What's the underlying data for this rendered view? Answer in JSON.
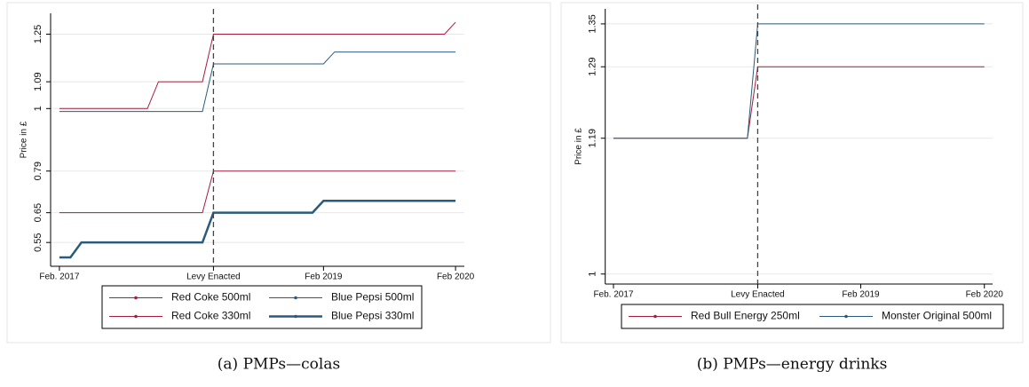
{
  "chart_data": [
    {
      "type": "line",
      "caption": "(a) PMPs—colas",
      "y_label": "Price in £",
      "x": [
        0,
        1,
        2,
        3,
        4,
        5,
        6,
        7,
        8,
        9,
        10,
        11,
        12,
        13,
        14,
        15,
        16,
        17,
        18,
        19,
        20,
        21,
        22,
        23,
        24,
        25,
        26,
        27,
        28,
        29,
        30,
        31,
        32,
        33,
        34,
        35,
        36
      ],
      "xlim": [
        -0.8,
        36.8
      ],
      "xticks": [
        {
          "value": 0,
          "label": "Feb. 2017"
        },
        {
          "value": 14,
          "label": "Levy Enacted"
        },
        {
          "value": 24,
          "label": "Feb 2019"
        },
        {
          "value": 36,
          "label": "Feb 2020"
        }
      ],
      "vline": 14,
      "ylim": [
        0.47,
        1.32
      ],
      "yticks": [
        0.55,
        0.65,
        0.79,
        1,
        1.09,
        1.25
      ],
      "grid": true,
      "series": [
        {
          "name": "Red Coke 500ml",
          "color": "#a51c3c",
          "width": 1,
          "values": [
            1,
            1,
            1,
            1,
            1,
            1,
            1,
            1,
            1,
            1.09,
            1.09,
            1.09,
            1.09,
            1.09,
            1.25,
            1.25,
            1.25,
            1.25,
            1.25,
            1.25,
            1.25,
            1.25,
            1.25,
            1.25,
            1.25,
            1.25,
            1.25,
            1.25,
            1.25,
            1.25,
            1.25,
            1.25,
            1.25,
            1.25,
            1.25,
            1.25,
            1.29
          ]
        },
        {
          "name": "Blue Pepsi 500ml",
          "color": "#2b5b7b",
          "width": 1,
          "values": [
            0.99,
            0.99,
            0.99,
            0.99,
            0.99,
            0.99,
            0.99,
            0.99,
            0.99,
            0.99,
            0.99,
            0.99,
            0.99,
            0.99,
            1.15,
            1.15,
            1.15,
            1.15,
            1.15,
            1.15,
            1.15,
            1.15,
            1.15,
            1.15,
            1.15,
            1.19,
            1.19,
            1.19,
            1.19,
            1.19,
            1.19,
            1.19,
            1.19,
            1.19,
            1.19,
            1.19,
            1.19
          ]
        },
        {
          "name": "Red Coke 330ml",
          "color": "#a51c3c",
          "width": 1,
          "values": [
            0.65,
            0.65,
            0.65,
            0.65,
            0.65,
            0.65,
            0.65,
            0.65,
            0.65,
            0.65,
            0.65,
            0.65,
            0.65,
            0.65,
            0.79,
            0.79,
            0.79,
            0.79,
            0.79,
            0.79,
            0.79,
            0.79,
            0.79,
            0.79,
            0.79,
            0.79,
            0.79,
            0.79,
            0.79,
            0.79,
            0.79,
            0.79,
            0.79,
            0.79,
            0.79,
            0.79,
            0.79
          ]
        },
        {
          "name": "Blue Pepsi 330ml",
          "color": "#2b5b7b",
          "width": 2.5,
          "values": [
            0.5,
            0.5,
            0.55,
            0.55,
            0.55,
            0.55,
            0.55,
            0.55,
            0.55,
            0.55,
            0.55,
            0.55,
            0.55,
            0.55,
            0.65,
            0.65,
            0.65,
            0.65,
            0.65,
            0.65,
            0.65,
            0.65,
            0.65,
            0.65,
            0.69,
            0.69,
            0.69,
            0.69,
            0.69,
            0.69,
            0.69,
            0.69,
            0.69,
            0.69,
            0.69,
            0.69,
            0.69
          ]
        }
      ]
    },
    {
      "type": "line",
      "caption": "(b) PMPs—energy drinks",
      "y_label": "Price in £",
      "x": [
        0,
        1,
        2,
        3,
        4,
        5,
        6,
        7,
        8,
        9,
        10,
        11,
        12,
        13,
        14,
        15,
        16,
        17,
        18,
        19,
        20,
        21,
        22,
        23,
        24,
        25,
        26,
        27,
        28,
        29,
        30,
        31,
        32,
        33,
        34,
        35,
        36
      ],
      "xlim": [
        -0.8,
        36.8
      ],
      "xticks": [
        {
          "value": 0,
          "label": "Feb. 2017"
        },
        {
          "value": 14,
          "label": "Levy Enacted"
        },
        {
          "value": 24,
          "label": "Feb 2019"
        },
        {
          "value": 36,
          "label": "Feb 2020"
        }
      ],
      "vline": 14,
      "ylim": [
        0.986,
        1.371
      ],
      "yticks": [
        1,
        1.19,
        1.29,
        1.35
      ],
      "grid": true,
      "series": [
        {
          "name": "Red Bull Energy 250ml",
          "color": "#a51c3c",
          "width": 1,
          "values": [
            1.19,
            1.19,
            1.19,
            1.19,
            1.19,
            1.19,
            1.19,
            1.19,
            1.19,
            1.19,
            1.19,
            1.19,
            1.19,
            1.19,
            1.29,
            1.29,
            1.29,
            1.29,
            1.29,
            1.29,
            1.29,
            1.29,
            1.29,
            1.29,
            1.29,
            1.29,
            1.29,
            1.29,
            1.29,
            1.29,
            1.29,
            1.29,
            1.29,
            1.29,
            1.29,
            1.29,
            1.29
          ]
        },
        {
          "name": "Monster Original 500ml",
          "color": "#2b5b7b",
          "width": 1,
          "values": [
            1.19,
            1.19,
            1.19,
            1.19,
            1.19,
            1.19,
            1.19,
            1.19,
            1.19,
            1.19,
            1.19,
            1.19,
            1.19,
            1.19,
            1.35,
            1.35,
            1.35,
            1.35,
            1.35,
            1.35,
            1.35,
            1.35,
            1.35,
            1.35,
            1.35,
            1.35,
            1.35,
            1.35,
            1.35,
            1.35,
            1.35,
            1.35,
            1.35,
            1.35,
            1.35,
            1.35,
            1.35
          ]
        }
      ]
    }
  ]
}
